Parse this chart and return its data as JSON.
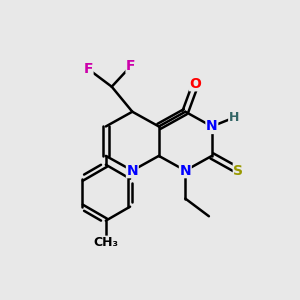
{
  "bg_color": "#e8e8e8",
  "bond_color": "#000000",
  "bond_width": 1.8,
  "figsize": [
    3.0,
    3.0
  ],
  "dpi": 100,
  "atom_colors": {
    "N": "#0000ff",
    "O": "#ff0000",
    "S": "#999900",
    "F": "#cc00aa",
    "H": "#336666",
    "C": "#000000"
  },
  "font_size": 10
}
